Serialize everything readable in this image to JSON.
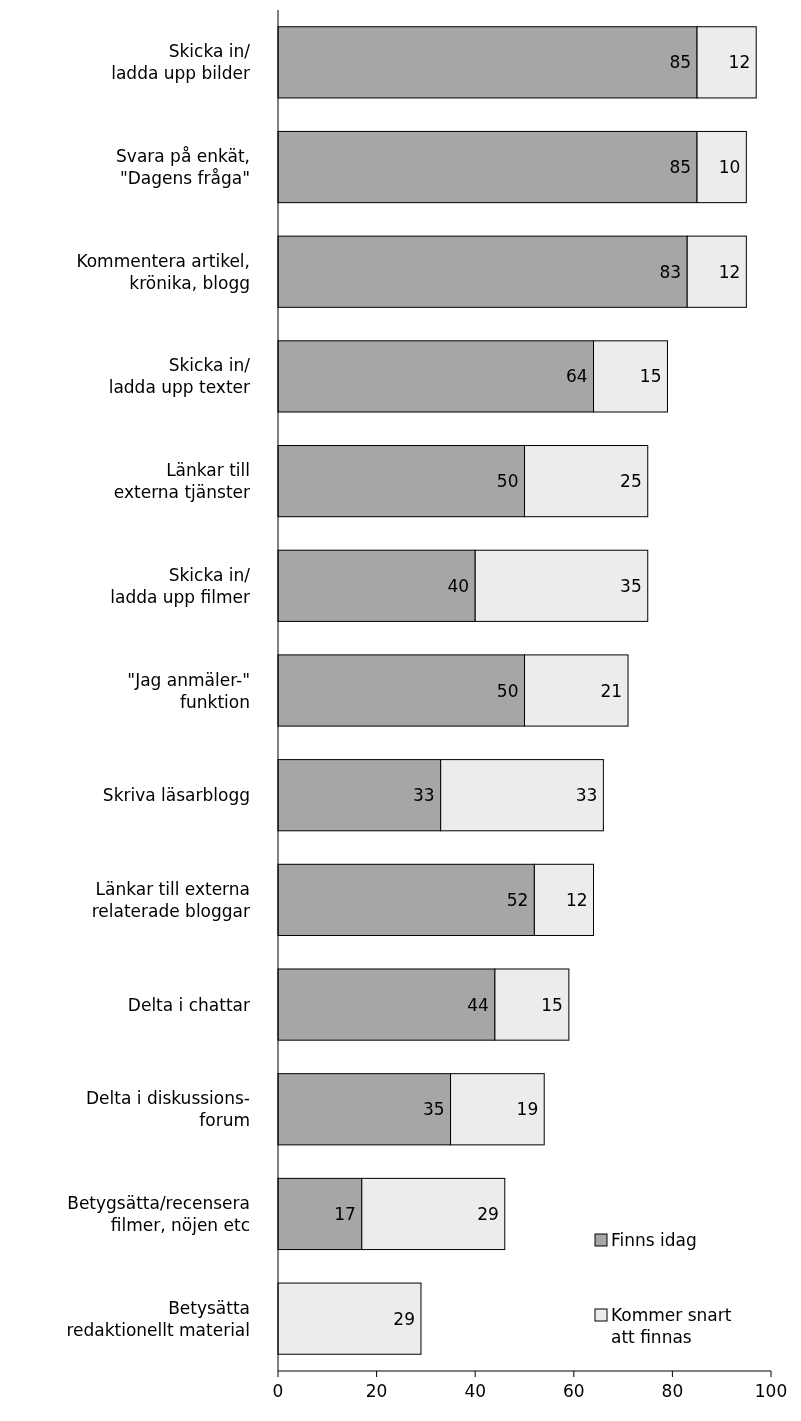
{
  "chart_data": {
    "type": "bar",
    "orientation": "horizontal",
    "stacked": true,
    "data_labels": true,
    "legend": "bottom right",
    "categories": [
      "Skicka in/\nladda upp bilder",
      "Svara på enkät,\n\"Dagens fråga\"",
      "Kommentera artikel,\nkrönika, blogg",
      "Skicka in/\nladda upp texter",
      "Länkar till\nexterna tjänster",
      "Skicka in/\nladda upp filmer",
      "\"Jag anmäler-\"\nfunktion",
      "Skriva läsarblogg",
      "Länkar till externa\nrelaterade bloggar",
      "Delta i chattar",
      "Delta i diskussions-\nforum",
      "Betygsätta/recensera\nfilmer, nöjen etc",
      "Betysätta\nredaktionellt material"
    ],
    "series": [
      {
        "name": "Finns idag",
        "color": "#a6a6a6",
        "values": [
          85,
          85,
          83,
          64,
          50,
          40,
          50,
          33,
          52,
          44,
          35,
          17,
          null
        ]
      },
      {
        "name": "Kommer snart att finnas",
        "color": "#ececec",
        "values": [
          12,
          10,
          12,
          15,
          25,
          35,
          21,
          33,
          12,
          15,
          19,
          29,
          29
        ]
      }
    ],
    "xlim": [
      0,
      100
    ],
    "xticks": [
      0,
      20,
      40,
      60,
      80,
      100
    ]
  }
}
